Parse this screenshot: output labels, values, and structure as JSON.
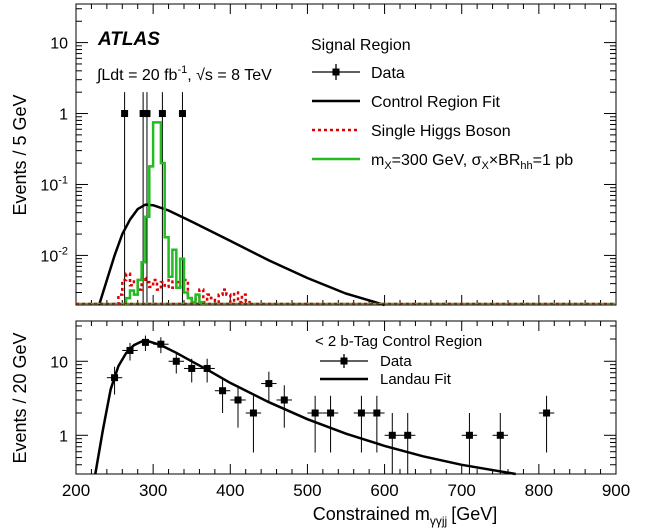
{
  "experiment": {
    "name": "ATLAS",
    "lumi_prefix": "∫Ldt = 20 fb",
    "lumi_sup": "-1",
    "lumi_sep": ",",
    "energy_root": "√s",
    "energy_value": "= 8 TeV"
  },
  "x_axis": {
    "label_main": "Constrained m",
    "label_sub": "γγjj",
    "label_unit": "[GeV]",
    "range": [
      200,
      900
    ],
    "ticks": [
      200,
      300,
      400,
      500,
      600,
      700,
      800,
      900
    ]
  },
  "chart_data": [
    {
      "type": "line",
      "title": "Signal Region",
      "ylabel": "Events / 5 GeV",
      "yscale": "log",
      "ylim": [
        0.002,
        35
      ],
      "y_ticks": [
        {
          "value": 0.01,
          "base": "10",
          "exp": "-2"
        },
        {
          "value": 0.1,
          "base": "10",
          "exp": "-1"
        },
        {
          "value": 1,
          "base": "1",
          "exp": ""
        },
        {
          "value": 10,
          "base": "10",
          "exp": ""
        }
      ],
      "legend": {
        "placement": "top-right",
        "header": "Signal Region",
        "entries": [
          {
            "label": "Data",
            "style": "marker"
          },
          {
            "label": "Control Region Fit",
            "style": "line-black"
          },
          {
            "label": "Single Higgs Boson",
            "style": "line-red-dotted"
          },
          {
            "label_main": "m",
            "label_sub1": "X",
            "label_mid": "=300 GeV, σ",
            "label_sub2": "X",
            "label_mid2": "×BR",
            "label_sub3": "hh",
            "label_end": "=1 pb",
            "style": "line-green"
          }
        ]
      },
      "series": [
        {
          "name": "Data",
          "kind": "points",
          "color": "#000000",
          "points": [
            {
              "x": 263,
              "y": 1
            },
            {
              "x": 287,
              "y": 1
            },
            {
              "x": 292,
              "y": 1
            },
            {
              "x": 312,
              "y": 1
            },
            {
              "x": 338,
              "y": 1
            }
          ]
        },
        {
          "name": "Control Region Fit",
          "kind": "curve",
          "color": "#000000",
          "points": [
            [
              230,
              0.002
            ],
            [
              240,
              0.0045
            ],
            [
              250,
              0.01
            ],
            [
              260,
              0.02
            ],
            [
              270,
              0.032
            ],
            [
              280,
              0.045
            ],
            [
              290,
              0.052
            ],
            [
              300,
              0.051
            ],
            [
              320,
              0.043
            ],
            [
              350,
              0.03
            ],
            [
              400,
              0.016
            ],
            [
              450,
              0.0085
            ],
            [
              500,
              0.0048
            ],
            [
              550,
              0.0029
            ],
            [
              600,
              0.002
            ]
          ]
        },
        {
          "name": "Single Higgs Boson",
          "kind": "step",
          "color": "#e00000",
          "bins": [
            [
              255,
              0.0028
            ],
            [
              260,
              0.0045
            ],
            [
              265,
              0.0055
            ],
            [
              270,
              0.0038
            ],
            [
              275,
              0.0045
            ],
            [
              280,
              0.0033
            ],
            [
              285,
              0.0048
            ],
            [
              290,
              0.0042
            ],
            [
              295,
              0.0036
            ],
            [
              300,
              0.0045
            ],
            [
              305,
              0.0033
            ],
            [
              310,
              0.0042
            ],
            [
              315,
              0.0036
            ],
            [
              320,
              0.0045
            ],
            [
              325,
              0.0035
            ],
            [
              330,
              0.0042
            ],
            [
              335,
              0.0036
            ],
            [
              340,
              0.0045
            ],
            [
              345,
              0.0025
            ],
            [
              350,
              0.0022
            ],
            [
              355,
              0.0025
            ],
            [
              360,
              0.0033
            ],
            [
              365,
              0.0022
            ],
            [
              370,
              0.0028
            ],
            [
              375,
              0.0025
            ],
            [
              380,
              0.0022
            ],
            [
              385,
              0.0028
            ],
            [
              390,
              0.0033
            ],
            [
              395,
              0.0028
            ],
            [
              400,
              0.0022
            ],
            [
              405,
              0.003
            ],
            [
              410,
              0.0022
            ],
            [
              415,
              0.0028
            ],
            [
              420,
              0.0022
            ]
          ]
        },
        {
          "name": "m_X=300 GeV",
          "kind": "step",
          "color": "#22bb22",
          "bins": [
            [
              265,
              0.0025
            ],
            [
              270,
              0.0032
            ],
            [
              275,
              0.0028
            ],
            [
              280,
              0.0045
            ],
            [
              285,
              0.008
            ],
            [
              290,
              0.035
            ],
            [
              295,
              0.18
            ],
            [
              300,
              0.75
            ],
            [
              305,
              0.75
            ],
            [
              310,
              0.2
            ],
            [
              315,
              0.018
            ],
            [
              320,
              0.005
            ],
            [
              325,
              0.012
            ],
            [
              330,
              0.0035
            ],
            [
              335,
              0.009
            ],
            [
              340,
              0.003
            ],
            [
              345,
              0.0025
            ],
            [
              350,
              0.0022
            ],
            [
              355,
              0.0028
            ],
            [
              360,
              0.0022
            ]
          ]
        }
      ]
    },
    {
      "type": "scatter",
      "title": "< 2 b-Tag Control Region",
      "ylabel": "Events / 20 GeV",
      "yscale": "log",
      "ylim": [
        0.3,
        35
      ],
      "y_ticks": [
        {
          "value": 1,
          "base": "1",
          "exp": ""
        },
        {
          "value": 10,
          "base": "10",
          "exp": ""
        }
      ],
      "legend": {
        "placement": "top-right",
        "header": "< 2 b-Tag Control Region",
        "entries": [
          {
            "label": "Data",
            "style": "marker"
          },
          {
            "label": "Landau Fit",
            "style": "line-black"
          }
        ]
      },
      "series": [
        {
          "name": "Data",
          "kind": "points",
          "color": "#000000",
          "points": [
            {
              "x": 250,
              "y": 6
            },
            {
              "x": 270,
              "y": 14
            },
            {
              "x": 290,
              "y": 18
            },
            {
              "x": 310,
              "y": 17
            },
            {
              "x": 330,
              "y": 10
            },
            {
              "x": 350,
              "y": 8
            },
            {
              "x": 370,
              "y": 8
            },
            {
              "x": 390,
              "y": 4
            },
            {
              "x": 410,
              "y": 3
            },
            {
              "x": 430,
              "y": 2
            },
            {
              "x": 450,
              "y": 5
            },
            {
              "x": 470,
              "y": 3
            },
            {
              "x": 510,
              "y": 2
            },
            {
              "x": 530,
              "y": 2
            },
            {
              "x": 570,
              "y": 2
            },
            {
              "x": 590,
              "y": 2
            },
            {
              "x": 610,
              "y": 1
            },
            {
              "x": 630,
              "y": 1
            },
            {
              "x": 710,
              "y": 1
            },
            {
              "x": 750,
              "y": 1
            },
            {
              "x": 810,
              "y": 2
            }
          ]
        },
        {
          "name": "Landau Fit",
          "kind": "curve",
          "color": "#000000",
          "points": [
            [
              225,
              0.3
            ],
            [
              235,
              1.2
            ],
            [
              245,
              4.2
            ],
            [
              255,
              8.6
            ],
            [
              265,
              12.9
            ],
            [
              275,
              16.5
            ],
            [
              285,
              18.5
            ],
            [
              295,
              18.5
            ],
            [
              310,
              16.5
            ],
            [
              330,
              13.0
            ],
            [
              350,
              10.0
            ],
            [
              375,
              7.2
            ],
            [
              400,
              5.1
            ],
            [
              450,
              2.8
            ],
            [
              500,
              1.65
            ],
            [
              550,
              1.05
            ],
            [
              600,
              0.72
            ],
            [
              650,
              0.52
            ],
            [
              700,
              0.4
            ],
            [
              770,
              0.3
            ]
          ]
        }
      ]
    }
  ]
}
